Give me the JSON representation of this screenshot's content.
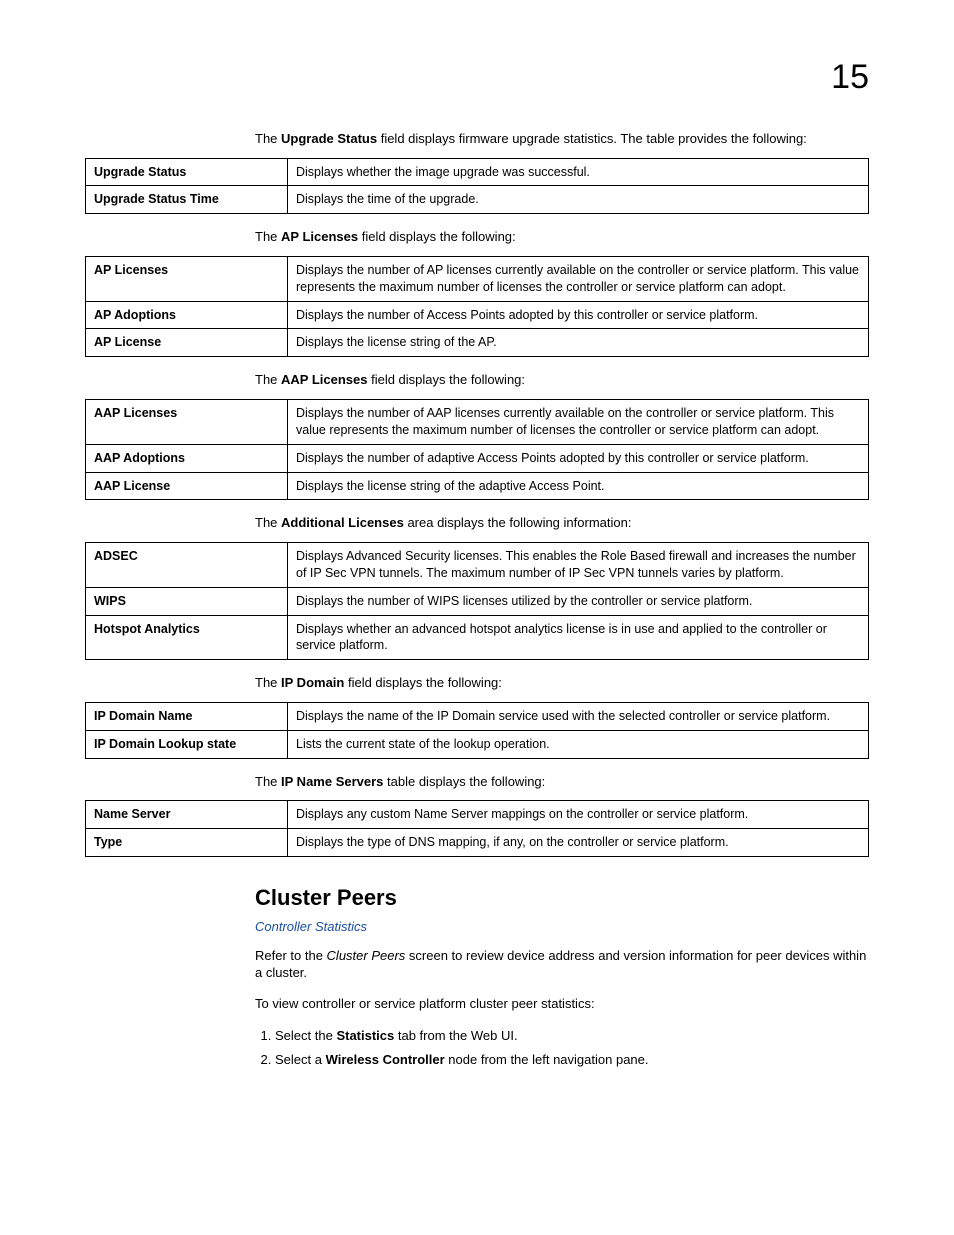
{
  "chapter_number": "15",
  "link_color": "#1a4ea0",
  "intros": {
    "upgrade": {
      "prefix": "The ",
      "bold": "Upgrade Status",
      "suffix": " field displays firmware upgrade statistics. The table provides the following:"
    },
    "ap": {
      "prefix": "The ",
      "bold": "AP Licenses",
      "suffix": " field displays the following:"
    },
    "aap": {
      "prefix": "The ",
      "bold": "AAP Licenses",
      "suffix": " field displays the following:"
    },
    "addl": {
      "prefix": "The ",
      "bold": "Additional Licenses",
      "suffix": " area displays the following information:"
    },
    "ipdom": {
      "prefix": "The ",
      "bold": "IP Domain",
      "suffix": " field displays the following:"
    },
    "ipns": {
      "prefix": "The ",
      "bold": "IP Name Servers",
      "suffix": " table displays the following:"
    }
  },
  "tables": {
    "upgrade": [
      {
        "label": "Upgrade Status",
        "desc": "Displays whether the image upgrade was successful."
      },
      {
        "label": "Upgrade Status Time",
        "desc": "Displays the time of the upgrade."
      }
    ],
    "ap": [
      {
        "label": "AP Licenses",
        "desc": "Displays the number of AP licenses currently available on the controller or service platform. This value represents the maximum number of licenses the controller or service platform can adopt."
      },
      {
        "label": "AP Adoptions",
        "desc": "Displays the number of Access Points adopted by this controller or service platform."
      },
      {
        "label": "AP License",
        "desc": "Displays the license string of the AP."
      }
    ],
    "aap": [
      {
        "label": "AAP Licenses",
        "desc": "Displays the number of AAP licenses currently available on the controller or service platform. This value represents the maximum number of licenses the controller or service platform can adopt."
      },
      {
        "label": "AAP Adoptions",
        "desc": "Displays the number of adaptive Access Points adopted by this controller or service platform."
      },
      {
        "label": "AAP License",
        "desc": "Displays the license string of the adaptive Access Point."
      }
    ],
    "addl": [
      {
        "label": "ADSEC",
        "desc": "Displays Advanced Security licenses. This enables the Role Based firewall and increases the number of IP Sec VPN tunnels. The maximum number of IP Sec VPN tunnels varies by platform."
      },
      {
        "label": "WIPS",
        "desc": "Displays the number of WIPS licenses utilized by the controller or service platform."
      },
      {
        "label": "Hotspot Analytics",
        "desc": "Displays whether an advanced hotspot analytics license is in use and applied to the controller or service platform."
      }
    ],
    "ipdom": [
      {
        "label": "IP Domain Name",
        "desc": "Displays the name of the IP Domain service used with the selected controller or service platform."
      },
      {
        "label": "IP Domain Lookup state",
        "desc": "Lists the current state of the lookup operation."
      }
    ],
    "ipns": [
      {
        "label": "Name Server",
        "desc": "Displays any custom Name Server mappings on the controller or service platform."
      },
      {
        "label": "Type",
        "desc": "Displays the type of DNS mapping, if any, on the controller or service platform."
      }
    ]
  },
  "section": {
    "title": "Cluster Peers",
    "subhead": "Controller Statistics",
    "p1_prefix": "Refer to the ",
    "p1_italic": "Cluster Peers",
    "p1_suffix": " screen to review device address and version information for peer devices within a cluster.",
    "p2": "To view controller or service platform cluster peer statistics:",
    "steps": [
      {
        "pre": "Select the ",
        "bold": "Statistics",
        "post": " tab from the Web UI."
      },
      {
        "pre": "Select a ",
        "bold": "Wireless Controller",
        "post": " node from the left navigation pane."
      }
    ]
  }
}
